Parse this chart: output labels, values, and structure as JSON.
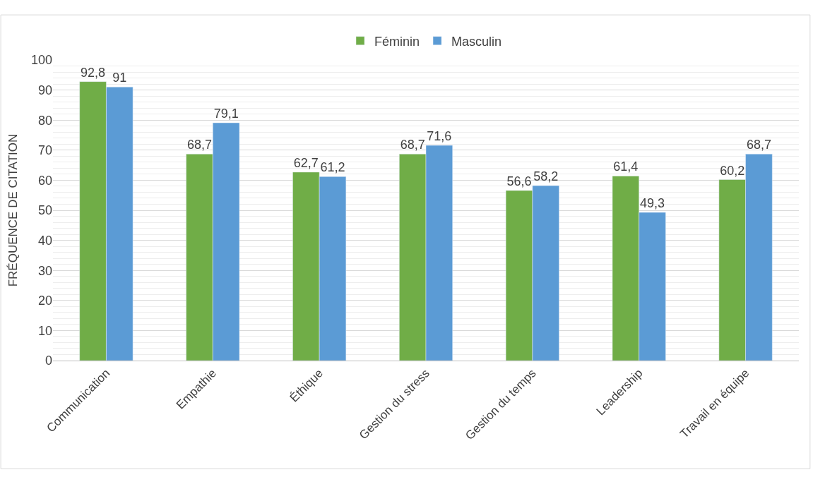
{
  "chart_data": {
    "type": "bar",
    "ylabel": "FRÉQUENCE DE CITATION",
    "categories": [
      "Communication",
      "Empathie",
      "Éthique",
      "Gestion du stress",
      "Gestion du temps",
      "Leadership",
      "Travail en équipe"
    ],
    "series": [
      {
        "name": "Féminin",
        "color": "#70ad47",
        "values": [
          92.8,
          68.7,
          62.7,
          68.7,
          56.6,
          61.4,
          60.2
        ],
        "value_labels": [
          "92,8",
          "68,7",
          "62,7",
          "68,7",
          "56,6",
          "61,4",
          "60,2"
        ]
      },
      {
        "name": "Masculin",
        "color": "#5b9bd5",
        "values": [
          91,
          79.1,
          61.2,
          71.6,
          58.2,
          49.3,
          68.7
        ],
        "value_labels": [
          "91",
          "79,1",
          "61,2",
          "71,6",
          "58,2",
          "49,3",
          "68,7"
        ]
      }
    ],
    "ylim": [
      0,
      100
    ],
    "yticks": [
      0,
      10,
      20,
      30,
      40,
      50,
      60,
      70,
      80,
      90,
      100
    ],
    "grid": "y",
    "legend": "top"
  }
}
